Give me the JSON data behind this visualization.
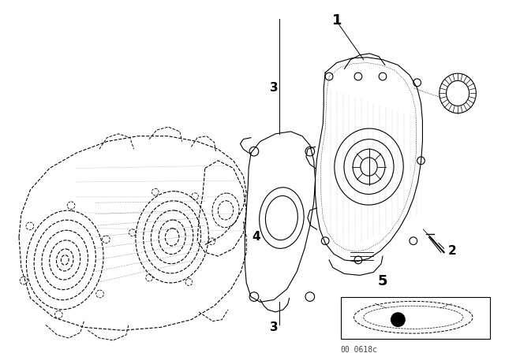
{
  "bg_color": "#ffffff",
  "label_color": "#000000",
  "line_color": "#000000",
  "watermark": "00_0618c",
  "fig_width": 6.4,
  "fig_height": 4.48,
  "dpi": 100
}
